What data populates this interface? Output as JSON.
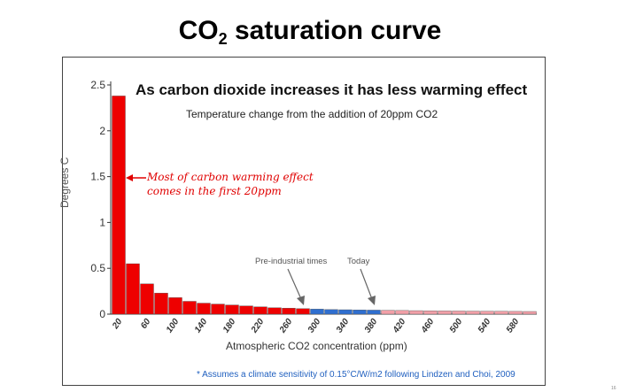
{
  "slide": {
    "title_main": "CO",
    "title_sub": "2",
    "title_rest": " saturation curve",
    "page_number": "16"
  },
  "chart_data": {
    "type": "bar",
    "title": "As carbon dioxide increases it has less warming effect",
    "subtitle": "Temperature change from the addition of 20ppm CO2",
    "xlabel": "Atmospheric CO2 concentration (ppm)",
    "ylabel": "Degrees C",
    "ylim": [
      0,
      2.5
    ],
    "yticks": [
      "0",
      "0.5",
      "1",
      "1.5",
      "2",
      "2.5"
    ],
    "categories": [
      "20",
      "40",
      "60",
      "80",
      "100",
      "120",
      "140",
      "160",
      "180",
      "200",
      "220",
      "240",
      "260",
      "280",
      "300",
      "320",
      "340",
      "360",
      "380",
      "400",
      "420",
      "440",
      "460",
      "480",
      "500",
      "520",
      "540",
      "560",
      "580",
      "600"
    ],
    "xtick_labels": [
      "20",
      "60",
      "100",
      "140",
      "180",
      "220",
      "260",
      "300",
      "340",
      "380",
      "420",
      "460",
      "500",
      "540",
      "580"
    ],
    "values": [
      2.38,
      0.55,
      0.33,
      0.23,
      0.18,
      0.14,
      0.12,
      0.11,
      0.1,
      0.09,
      0.08,
      0.07,
      0.065,
      0.06,
      0.055,
      0.05,
      0.048,
      0.046,
      0.044,
      0.042,
      0.04,
      0.038,
      0.036,
      0.035,
      0.034,
      0.033,
      0.032,
      0.031,
      0.03,
      0.029
    ],
    "bar_colors": [
      "#ee0000",
      "#ee0000",
      "#ee0000",
      "#ee0000",
      "#ee0000",
      "#ee0000",
      "#ee0000",
      "#ee0000",
      "#ee0000",
      "#ee0000",
      "#ee0000",
      "#ee0000",
      "#ee0000",
      "#ee0000",
      "#2f6fd0",
      "#2f6fd0",
      "#2f6fd0",
      "#2f6fd0",
      "#2f6fd0",
      "#f2a0a8",
      "#f2a0a8",
      "#f2a0a8",
      "#f2a0a8",
      "#f2a0a8",
      "#f2a0a8",
      "#f2a0a8",
      "#f2a0a8",
      "#f2a0a8",
      "#f2a0a8",
      "#f2a0a8"
    ],
    "grid": false,
    "annotations": {
      "main": [
        "Most of carbon warming effect",
        "comes in the first 20ppm"
      ],
      "pre_industrial": "Pre-industrial times",
      "today": "Today"
    },
    "footnote": "* Assumes a climate sensitivity of 0.15°C/W/m2 following Lindzen and Choi, 2009"
  }
}
